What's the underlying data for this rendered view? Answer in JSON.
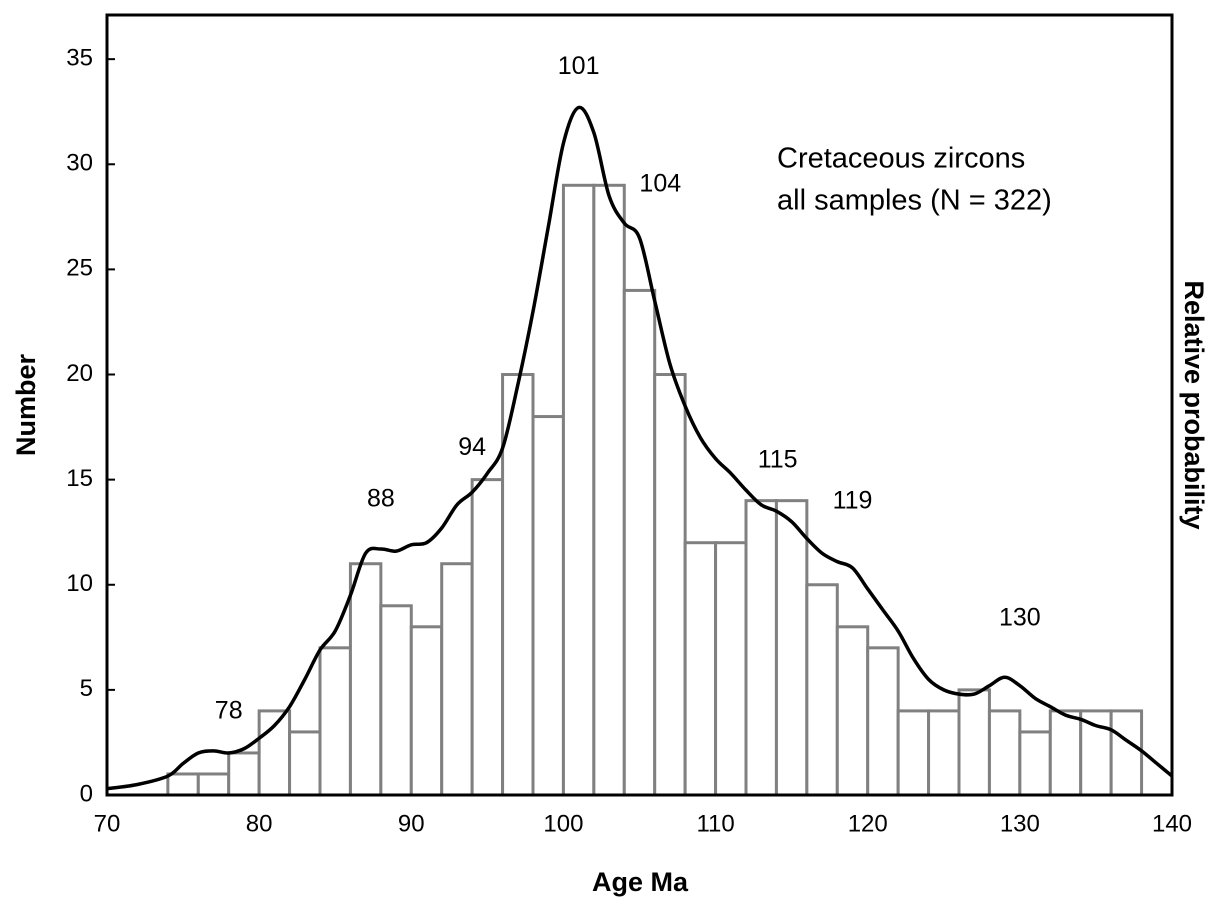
{
  "chart_data": {
    "type": "histogram",
    "xlabel": "Age Ma",
    "ylabel": "Number",
    "y2label": "Relative probability",
    "annotation_lines": [
      "Cretaceous zircons",
      "all samples (N = 322)"
    ],
    "bins": [
      74,
      76,
      78,
      80,
      82,
      84,
      86,
      88,
      90,
      92,
      94,
      96,
      98,
      100,
      102,
      104,
      106,
      108,
      110,
      112,
      114,
      116,
      118,
      120,
      122,
      124,
      126,
      128,
      130,
      132,
      134,
      136,
      138
    ],
    "counts": [
      1,
      1,
      2,
      4,
      3,
      7,
      11,
      9,
      8,
      11,
      15,
      20,
      18,
      29,
      29,
      24,
      20,
      12,
      12,
      14,
      14,
      10,
      8,
      7,
      4,
      4,
      5,
      4,
      3,
      4,
      4,
      4
    ],
    "bar_color": "#808080",
    "curve": {
      "color": "#000000",
      "x": [
        70,
        72,
        74,
        75,
        76,
        77,
        78,
        79,
        80,
        81,
        82,
        83,
        84,
        85,
        86,
        87,
        88,
        89,
        90,
        91,
        92,
        93,
        94,
        95,
        96,
        97,
        98,
        99,
        100,
        101,
        102,
        103,
        104,
        105,
        106,
        107,
        108,
        109,
        110,
        111,
        112,
        113,
        114,
        115,
        116,
        117,
        118,
        119,
        120,
        121,
        122,
        123,
        124,
        125,
        126,
        127,
        128,
        129,
        130,
        131,
        132,
        133,
        134,
        135,
        136,
        137,
        138,
        139,
        140
      ],
      "values": [
        0.3,
        0.5,
        0.9,
        1.5,
        2.0,
        2.1,
        2.0,
        2.2,
        2.7,
        3.3,
        4.2,
        5.5,
        6.9,
        7.8,
        9.5,
        11.5,
        11.7,
        11.6,
        11.9,
        12.0,
        12.7,
        13.8,
        14.4,
        15.3,
        16.5,
        19.5,
        23,
        27,
        31,
        32.7,
        31.5,
        28.5,
        27.2,
        26.5,
        23.5,
        20.5,
        18.5,
        17.0,
        16.0,
        15.3,
        14.5,
        13.8,
        13.5,
        13.0,
        12.2,
        11.5,
        11.1,
        10.8,
        9.8,
        8.8,
        7.8,
        6.5,
        5.5,
        5.0,
        4.8,
        4.8,
        5.2,
        5.6,
        5.2,
        4.6,
        4.2,
        3.8,
        3.6,
        3.3,
        3.1,
        2.6,
        2.1,
        1.5,
        0.9
      ]
    },
    "peak_labels": [
      78,
      88,
      94,
      101,
      104,
      115,
      119,
      130
    ],
    "xlim": [
      70,
      140
    ],
    "xticks": [
      70,
      80,
      90,
      100,
      110,
      120,
      130,
      140
    ],
    "ylim": [
      0,
      37.1
    ],
    "yticks": [
      0,
      5,
      10,
      15,
      20,
      25,
      30,
      35
    ]
  }
}
